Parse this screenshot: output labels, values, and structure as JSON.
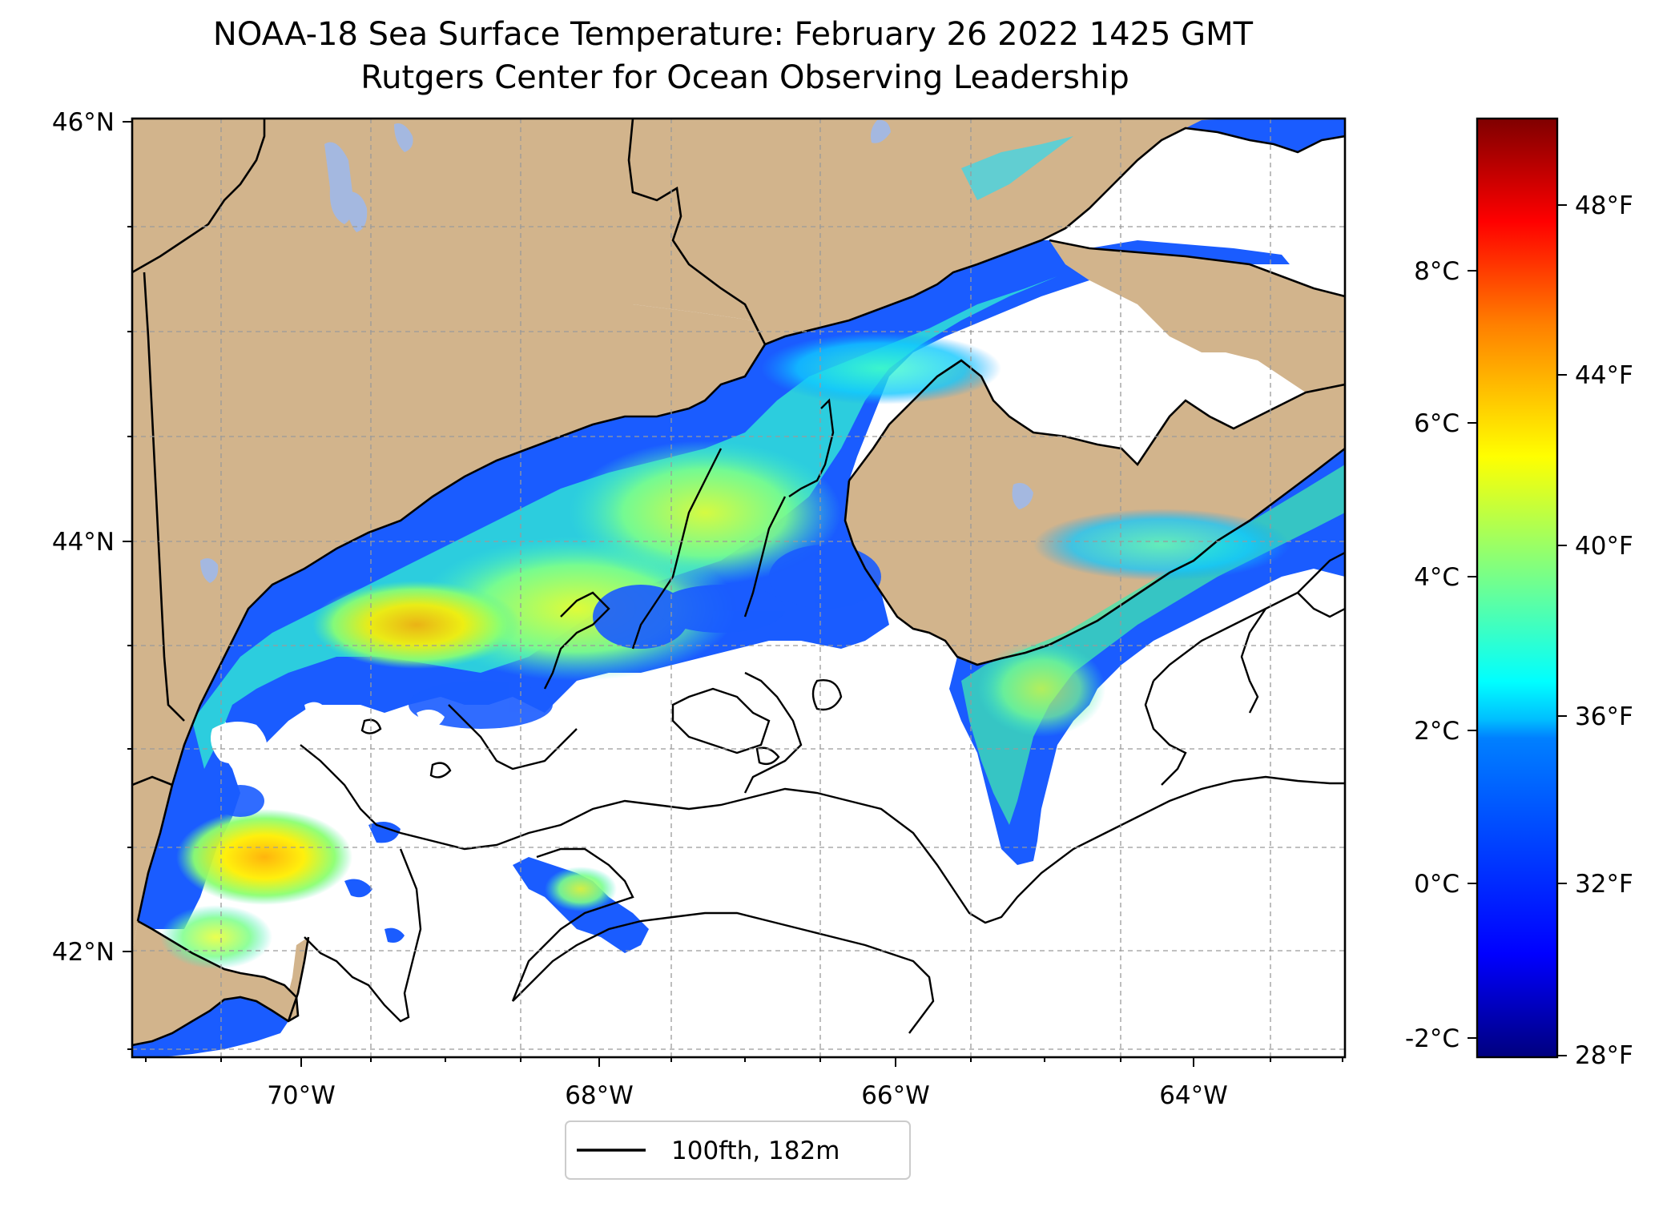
{
  "title": {
    "line1": "NOAA-18 Sea Surface Temperature: February 26 2022 1425 GMT",
    "line2": "Rutgers Center for Ocean Observing Leadership"
  },
  "map": {
    "lat_ticks": [
      "46°N",
      "44°N",
      "42°N"
    ],
    "lon_ticks": [
      "70°W",
      "68°W",
      "66°W",
      "64°W"
    ],
    "land_color": "#d2b48c",
    "lake_color": "#a4b8e0",
    "cold_water_color": "#1a5cff",
    "gridlines": "dashed"
  },
  "colorbar": {
    "colormap": "jet",
    "range_c": [
      -2.2,
      10
    ],
    "celsius_ticks": [
      "8°C",
      "6°C",
      "4°C",
      "2°C",
      "0°C",
      "-2°C"
    ],
    "fahrenheit_ticks": [
      "48°F",
      "44°F",
      "40°F",
      "36°F",
      "32°F",
      "28°F"
    ],
    "stops": [
      "#00007f",
      "#0000ff",
      "#0080ff",
      "#00ffff",
      "#80ff80",
      "#ffff00",
      "#ff8000",
      "#ff0000",
      "#7f0000"
    ]
  },
  "legend": {
    "label": "100fth, 182m",
    "line_color": "#000000"
  }
}
